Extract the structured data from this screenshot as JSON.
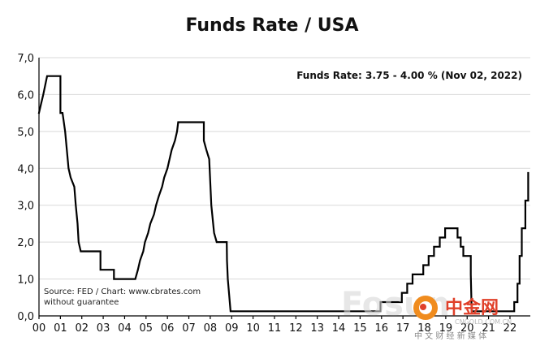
{
  "chart_data": {
    "type": "line",
    "title": "Funds Rate / USA",
    "annotation": "Funds Rate: 3.75 - 4.00 % (Nov 02, 2022)",
    "source_lines": [
      "Source: FED / Chart: www.cbrates.com",
      "without guarantee"
    ],
    "xlabel": "",
    "ylabel": "",
    "x_ticks": [
      "00",
      "01",
      "02",
      "03",
      "04",
      "05",
      "06",
      "07",
      "08",
      "09",
      "10",
      "11",
      "12",
      "13",
      "14",
      "15",
      "16",
      "17",
      "18",
      "19",
      "20",
      "21",
      "22"
    ],
    "y_ticks": [
      "0,0",
      "1,0",
      "2,0",
      "3,0",
      "4,0",
      "5,0",
      "6,0",
      "7,0"
    ],
    "xlim": [
      2000.0,
      2022.95
    ],
    "ylim": [
      0,
      7
    ],
    "grid": true,
    "series": [
      {
        "points": [
          [
            2000.0,
            5.5
          ],
          [
            2000.1,
            5.75
          ],
          [
            2000.2,
            6.0
          ],
          [
            2000.38,
            6.5
          ],
          [
            2001.0,
            6.5
          ],
          [
            2001.0,
            5.5
          ],
          [
            2001.1,
            5.5
          ],
          [
            2001.22,
            5.0
          ],
          [
            2001.3,
            4.5
          ],
          [
            2001.38,
            4.0
          ],
          [
            2001.48,
            3.75
          ],
          [
            2001.65,
            3.5
          ],
          [
            2001.72,
            3.0
          ],
          [
            2001.8,
            2.5
          ],
          [
            2001.85,
            2.0
          ],
          [
            2001.95,
            1.75
          ],
          [
            2002.87,
            1.75
          ],
          [
            2002.87,
            1.25
          ],
          [
            2003.5,
            1.25
          ],
          [
            2003.5,
            1.0
          ],
          [
            2004.5,
            1.0
          ],
          [
            2004.62,
            1.25
          ],
          [
            2004.72,
            1.5
          ],
          [
            2004.87,
            1.75
          ],
          [
            2004.95,
            2.0
          ],
          [
            2005.1,
            2.25
          ],
          [
            2005.2,
            2.5
          ],
          [
            2005.37,
            2.75
          ],
          [
            2005.47,
            3.0
          ],
          [
            2005.6,
            3.25
          ],
          [
            2005.75,
            3.5
          ],
          [
            2005.85,
            3.75
          ],
          [
            2006.0,
            4.0
          ],
          [
            2006.1,
            4.25
          ],
          [
            2006.2,
            4.5
          ],
          [
            2006.35,
            4.75
          ],
          [
            2006.45,
            5.0
          ],
          [
            2006.5,
            5.25
          ],
          [
            2007.7,
            5.25
          ],
          [
            2007.7,
            4.75
          ],
          [
            2007.82,
            4.5
          ],
          [
            2007.95,
            4.25
          ],
          [
            2008.05,
            3.0
          ],
          [
            2008.18,
            2.25
          ],
          [
            2008.3,
            2.0
          ],
          [
            2008.77,
            2.0
          ],
          [
            2008.78,
            1.5
          ],
          [
            2008.82,
            1.0
          ],
          [
            2008.95,
            0.125
          ],
          [
            2015.95,
            0.125
          ],
          [
            2015.95,
            0.375
          ],
          [
            2016.95,
            0.375
          ],
          [
            2016.95,
            0.625
          ],
          [
            2017.2,
            0.625
          ],
          [
            2017.2,
            0.875
          ],
          [
            2017.45,
            0.875
          ],
          [
            2017.45,
            1.125
          ],
          [
            2017.95,
            1.125
          ],
          [
            2017.95,
            1.375
          ],
          [
            2018.2,
            1.375
          ],
          [
            2018.2,
            1.625
          ],
          [
            2018.45,
            1.625
          ],
          [
            2018.45,
            1.875
          ],
          [
            2018.72,
            1.875
          ],
          [
            2018.72,
            2.125
          ],
          [
            2018.97,
            2.125
          ],
          [
            2018.97,
            2.375
          ],
          [
            2019.55,
            2.375
          ],
          [
            2019.55,
            2.125
          ],
          [
            2019.7,
            2.125
          ],
          [
            2019.7,
            1.875
          ],
          [
            2019.82,
            1.875
          ],
          [
            2019.82,
            1.625
          ],
          [
            2020.17,
            1.625
          ],
          [
            2020.17,
            1.125
          ],
          [
            2020.21,
            0.125
          ],
          [
            2022.2,
            0.125
          ],
          [
            2022.2,
            0.375
          ],
          [
            2022.35,
            0.375
          ],
          [
            2022.35,
            0.875
          ],
          [
            2022.45,
            0.875
          ],
          [
            2022.45,
            1.625
          ],
          [
            2022.55,
            1.625
          ],
          [
            2022.55,
            2.375
          ],
          [
            2022.72,
            2.375
          ],
          [
            2022.72,
            3.125
          ],
          [
            2022.85,
            3.125
          ],
          [
            2022.85,
            3.875
          ]
        ]
      }
    ]
  },
  "watermark": {
    "text": "Fosun",
    "brand": "中金网",
    "domain": "CNGOLD.COM.CN",
    "tagline": "中 文 财 经 新 媒 体",
    "colors": {
      "orange": "#f08c1e",
      "red": "#e0402a"
    }
  }
}
